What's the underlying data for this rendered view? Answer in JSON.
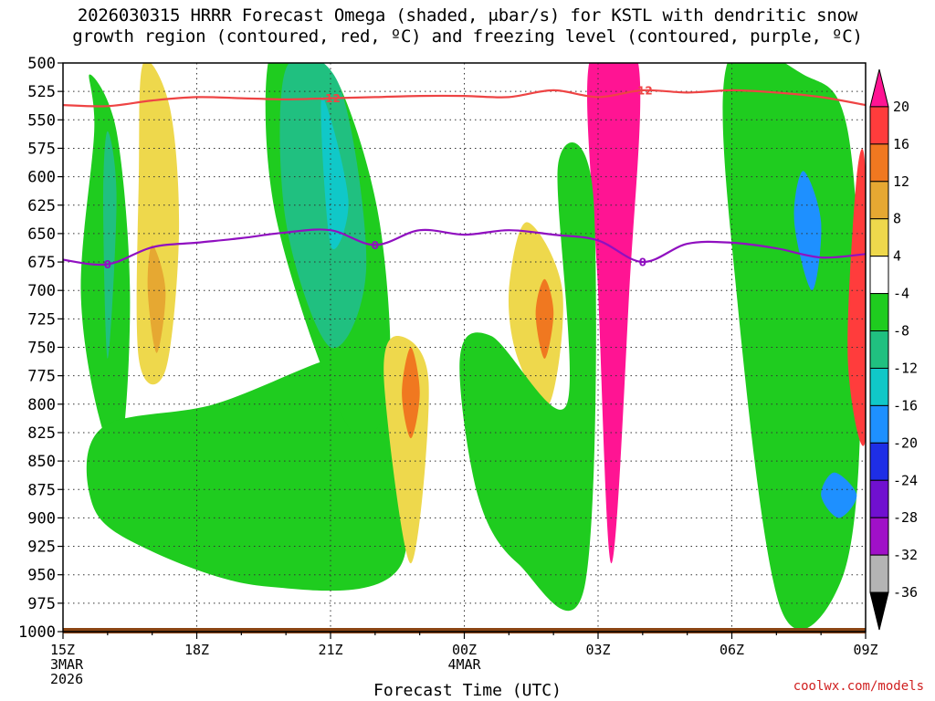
{
  "title": {
    "line1": "2026030315 HRRR Forecast Omega (shaded, μbar/s) for KSTL with dendritic snow",
    "line2": "growth region (contoured, red, ºC) and freezing level (contoured, purple, ºC)"
  },
  "watermark": "coolwx.com/models",
  "chart_data": {
    "type": "heatmap",
    "xlabel": "Forecast Time (UTC)",
    "ylabel": "",
    "x_range_hours": [
      0,
      18
    ],
    "y_axis": "pressure (inverted)",
    "ylim": [
      1000,
      500
    ],
    "y_ticks": [
      500,
      525,
      550,
      575,
      600,
      625,
      650,
      675,
      700,
      725,
      750,
      775,
      800,
      825,
      850,
      875,
      900,
      925,
      950,
      975,
      1000
    ],
    "x_ticks": [
      {
        "hour": 0,
        "lines": [
          "15Z",
          "3MAR",
          "2026"
        ]
      },
      {
        "hour": 3,
        "lines": [
          "18Z"
        ]
      },
      {
        "hour": 6,
        "lines": [
          "21Z"
        ]
      },
      {
        "hour": 9,
        "lines": [
          "00Z",
          "4MAR"
        ]
      },
      {
        "hour": 12,
        "lines": [
          "03Z"
        ]
      },
      {
        "hour": 15,
        "lines": [
          "06Z"
        ]
      },
      {
        "hour": 18,
        "lines": [
          "09Z"
        ]
      }
    ],
    "grid": true,
    "colorbar": {
      "labels": [
        20,
        16,
        12,
        8,
        4,
        -4,
        -8,
        -12,
        -16,
        -20,
        -24,
        -28,
        -32,
        -36
      ],
      "colors": [
        "#ff1493",
        "#ff3c3c",
        "#f07820",
        "#e6a832",
        "#eed84c",
        "#ffffff",
        "#1fcc1f",
        "#20c080",
        "#10c8c8",
        "#1e90ff",
        "#1e2ee6",
        "#7010d0",
        "#a010c8",
        "#b4b4b4",
        "#000000"
      ]
    },
    "contours": [
      {
        "label": "-12",
        "color": "#ee4444",
        "x": [
          0,
          1,
          2,
          3,
          4,
          5,
          6,
          7,
          8,
          9,
          10,
          11,
          12,
          13,
          14,
          15,
          16,
          17,
          18
        ],
        "y": [
          537,
          538,
          533,
          530,
          531,
          532,
          531,
          530,
          529,
          529,
          530,
          524,
          530,
          524,
          526,
          524,
          526,
          530,
          537
        ]
      },
      {
        "label": "0",
        "color": "#9010c0",
        "x": [
          0,
          1,
          2,
          3,
          4,
          5,
          6,
          7,
          8,
          9,
          10,
          11,
          12,
          13,
          14,
          15,
          16,
          17,
          18
        ],
        "y": [
          673,
          677,
          662,
          658,
          654,
          649,
          647,
          660,
          647,
          651,
          647,
          651,
          656,
          675,
          659,
          658,
          663,
          671,
          668
        ]
      }
    ],
    "shaded_regions": [
      {
        "value": -6,
        "x": [
          0.6,
          1.2,
          1.5,
          1.3,
          0.8,
          0.4,
          0.7
        ],
        "y": [
          510,
          560,
          700,
          840,
          810,
          700,
          560
        ]
      },
      {
        "value": -10,
        "x": [
          1.0,
          1.2,
          1.0,
          0.9
        ],
        "y": [
          560,
          620,
          760,
          620
        ]
      },
      {
        "value": 6,
        "x": [
          1.8,
          2.4,
          2.6,
          2.3,
          1.7,
          1.7
        ],
        "y": [
          500,
          540,
          650,
          770,
          760,
          600
        ]
      },
      {
        "value": 10,
        "x": [
          2.0,
          2.3,
          2.1,
          1.9
        ],
        "y": [
          660,
          700,
          755,
          700
        ]
      },
      {
        "value": -6,
        "x": [
          0.9,
          3.4,
          6.0,
          7.0,
          7.6,
          4.5,
          1.5,
          0.6
        ],
        "y": [
          820,
          800,
          760,
          760,
          940,
          960,
          920,
          880
        ]
      },
      {
        "value": -6,
        "x": [
          4.6,
          5.4,
          6.2,
          7.1,
          7.3,
          6.4,
          4.8
        ],
        "y": [
          500,
          500,
          520,
          640,
          790,
          820,
          640
        ]
      },
      {
        "value": -10,
        "x": [
          5.0,
          6.2,
          6.8,
          6.0,
          5.0
        ],
        "y": [
          505,
          520,
          680,
          750,
          640
        ]
      },
      {
        "value": -14,
        "x": [
          5.8,
          6.4,
          6.0
        ],
        "y": [
          530,
          620,
          660
        ]
      },
      {
        "value": 6,
        "x": [
          7.5,
          8.2,
          7.8,
          7.2
        ],
        "y": [
          740,
          780,
          940,
          780
        ]
      },
      {
        "value": 12,
        "x": [
          7.8,
          8.0,
          7.8,
          7.6
        ],
        "y": [
          750,
          790,
          830,
          790
        ]
      },
      {
        "value": 6,
        "x": [
          10.4,
          11.2,
          10.9,
          10.2,
          10.0
        ],
        "y": [
          640,
          700,
          800,
          760,
          700
        ]
      },
      {
        "value": 14,
        "x": [
          10.8,
          11.0,
          10.8,
          10.6
        ],
        "y": [
          690,
          720,
          760,
          720
        ]
      },
      {
        "value": 20,
        "x": [
          11.8,
          12.9,
          12.7,
          12.3,
          12.0
        ],
        "y": [
          500,
          500,
          700,
          940,
          700
        ]
      },
      {
        "value": -6,
        "x": [
          8.9,
          9.6,
          11.3,
          11.1,
          11.9,
          11.7,
          10.2,
          9.3
        ],
        "y": [
          760,
          740,
          800,
          590,
          620,
          960,
          940,
          880
        ]
      },
      {
        "value": -6,
        "x": [
          14.9,
          16.6,
          17.6,
          17.9,
          17.5,
          16.1,
          15.1
        ],
        "y": [
          500,
          510,
          560,
          780,
          950,
          980,
          700
        ]
      },
      {
        "value": -18,
        "x": [
          16.6,
          17.0,
          16.8,
          16.4
        ],
        "y": [
          595,
          640,
          700,
          640
        ]
      },
      {
        "value": -18,
        "x": [
          17.3,
          17.8,
          17.4,
          17.0
        ],
        "y": [
          860,
          880,
          900,
          880
        ]
      },
      {
        "value": 18,
        "x": [
          17.8,
          18.0,
          18.0,
          17.6
        ],
        "y": [
          600,
          600,
          830,
          760
        ]
      }
    ]
  }
}
